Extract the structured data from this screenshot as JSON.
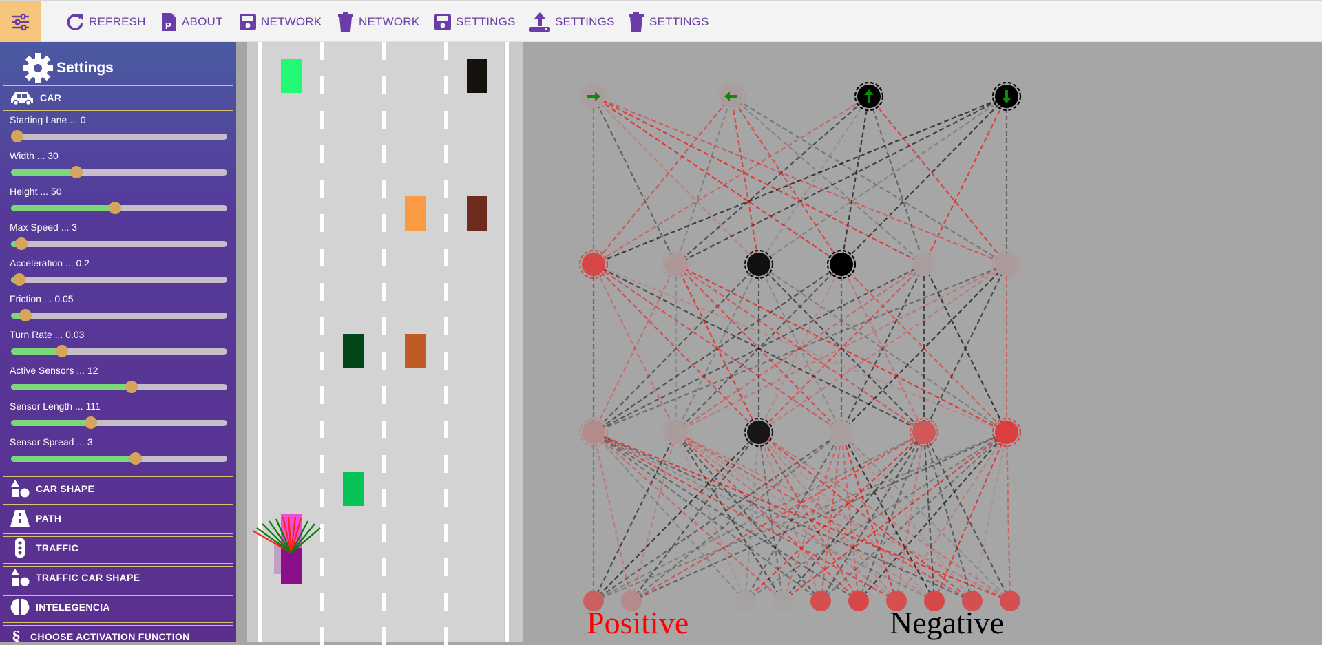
{
  "toolbar": {
    "items": [
      {
        "icon": "refresh-icon",
        "label": "REFRESH"
      },
      {
        "icon": "parking-icon",
        "label": "ABOUT"
      },
      {
        "icon": "save-icon",
        "label": "NETWORK"
      },
      {
        "icon": "trash-icon",
        "label": "NETWORK"
      },
      {
        "icon": "save-icon",
        "label": "SETTINGS"
      },
      {
        "icon": "upload-icon",
        "label": "SETTINGS"
      },
      {
        "icon": "trash-icon",
        "label": "SETTINGS"
      }
    ]
  },
  "sidebar": {
    "title": "Settings",
    "car_section": "CAR",
    "sliders": [
      {
        "label": "Starting Lane ... 0",
        "fraction": 0.0
      },
      {
        "label": "Width ... 30",
        "fraction": 0.29
      },
      {
        "label": "Height ... 50",
        "fraction": 0.48
      },
      {
        "label": "Max Speed ... 3",
        "fraction": 0.02
      },
      {
        "label": "Acceleration ... 0.2",
        "fraction": 0.01
      },
      {
        "label": "Friction ... 0.05",
        "fraction": 0.04
      },
      {
        "label": "Turn Rate ... 0.03",
        "fraction": 0.22
      },
      {
        "label": "Active Sensors ... 12",
        "fraction": 0.56
      },
      {
        "label": "Sensor Length ... 111",
        "fraction": 0.36
      },
      {
        "label": "Sensor Spread ... 3",
        "fraction": 0.58
      }
    ],
    "sections": [
      {
        "icon": "shapes-icon",
        "label": "CAR SHAPE"
      },
      {
        "icon": "road-icon",
        "label": "PATH"
      },
      {
        "icon": "traffic-light-icon",
        "label": "TRAFFIC"
      },
      {
        "icon": "shapes-icon",
        "label": "TRAFFIC CAR SHAPE"
      },
      {
        "icon": "brain-icon",
        "label": "INTELEGENCIA"
      },
      {
        "icon": "section-icon",
        "label": "CHOOSE ACTIVATION FUNCTION"
      }
    ]
  },
  "simulation": {
    "traffic_colors": [
      "#23f975",
      "#16120d",
      "#fa9a43",
      "#6e2b1e",
      "#03461a",
      "#c25b23",
      "#07c457"
    ],
    "car_color": "#8a0f8a",
    "car_highlight": "#ef4fd2"
  },
  "network": {
    "outputs": [
      "right-arrow-icon",
      "left-arrow-icon",
      "up-arrow-icon",
      "down-arrow-icon"
    ],
    "legend_positive": "Positive",
    "legend_negative": "Negative",
    "colors": {
      "positive": "#ff0000",
      "negative": "#000000"
    }
  }
}
